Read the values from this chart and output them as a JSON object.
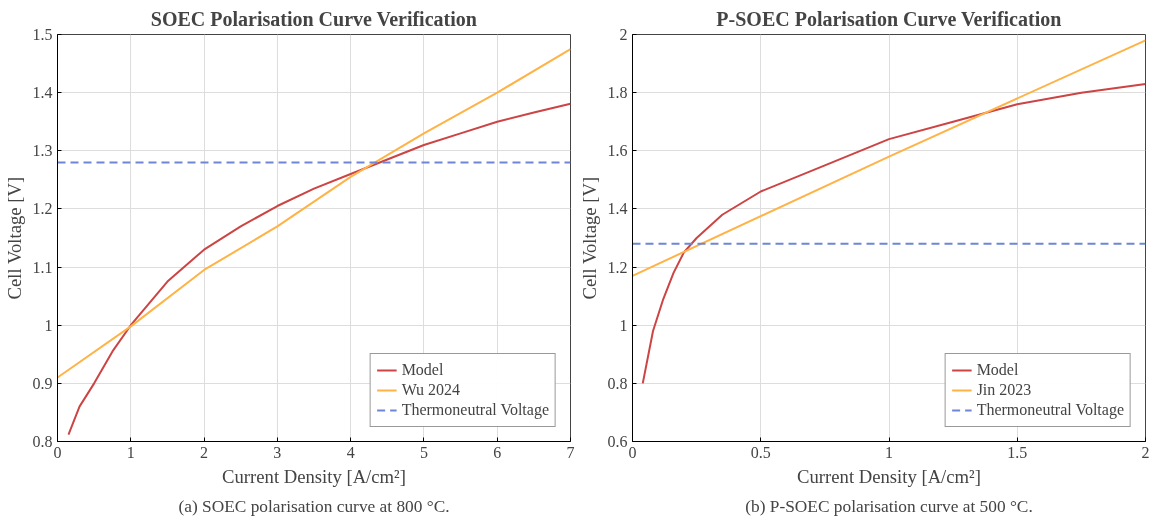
{
  "chart_data": [
    {
      "type": "line",
      "title": "SOEC Polarisation Curve Verification",
      "xlabel": "Current Density [A/cm²]",
      "ylabel": "Cell Voltage [V]",
      "xlim": [
        0,
        7
      ],
      "ylim": [
        0.8,
        1.5
      ],
      "xticks": [
        0,
        1,
        2,
        3,
        4,
        5,
        6,
        7
      ],
      "yticks": [
        0.8,
        0.9,
        1,
        1.1,
        1.2,
        1.3,
        1.4,
        1.5
      ],
      "grid": true,
      "legend": "bottom right",
      "annotations": [
        "(a) SOEC polarisation curve at 800 °C."
      ],
      "series": [
        {
          "name": "Model",
          "color": "#cc4444",
          "x": [
            0.15,
            0.3,
            0.5,
            0.75,
            1,
            1.5,
            2,
            2.5,
            3,
            3.5,
            4,
            4.5,
            5,
            5.5,
            6,
            6.5,
            7
          ],
          "values": [
            0.812,
            0.86,
            0.9,
            0.955,
            1.0,
            1.075,
            1.13,
            1.17,
            1.205,
            1.235,
            1.26,
            1.285,
            1.31,
            1.33,
            1.35,
            1.366,
            1.381
          ]
        },
        {
          "name": "Wu 2024",
          "color": "#ffb347",
          "x": [
            0,
            1,
            2,
            3,
            4,
            5,
            6,
            7
          ],
          "values": [
            0.91,
            0.998,
            1.095,
            1.17,
            1.255,
            1.33,
            1.4,
            1.475
          ]
        },
        {
          "name": "Thermoneutral Voltage",
          "color": "#6f86d6",
          "line_style": "dashed",
          "x": [
            0,
            7
          ],
          "values": [
            1.28,
            1.28
          ]
        }
      ]
    },
    {
      "type": "line",
      "title": "P-SOEC Polarisation Curve Verification",
      "xlabel": "Current Density [A/cm²]",
      "ylabel": "Cell Voltage [V]",
      "xlim": [
        0,
        2
      ],
      "ylim": [
        0.6,
        2
      ],
      "xticks": [
        0,
        0.5,
        1,
        1.5,
        2
      ],
      "yticks": [
        0.6,
        0.8,
        1,
        1.2,
        1.4,
        1.6,
        1.8,
        2
      ],
      "grid": true,
      "legend": "bottom right",
      "annotations": [
        "(b) P-SOEC polarisation curve at 500 °C."
      ],
      "series": [
        {
          "name": "Model",
          "color": "#cc4444",
          "x": [
            0.04,
            0.08,
            0.12,
            0.16,
            0.2,
            0.25,
            0.35,
            0.5,
            0.75,
            1,
            1.25,
            1.5,
            1.75,
            2
          ],
          "values": [
            0.8,
            0.98,
            1.09,
            1.18,
            1.25,
            1.3,
            1.38,
            1.46,
            1.55,
            1.64,
            1.7,
            1.76,
            1.8,
            1.83
          ]
        },
        {
          "name": "Jin 2023",
          "color": "#ffb347",
          "x": [
            0,
            1,
            2
          ],
          "values": [
            1.17,
            1.58,
            1.98
          ]
        },
        {
          "name": "Thermoneutral Voltage",
          "color": "#6f86d6",
          "line_style": "dashed",
          "x": [
            0,
            2
          ],
          "values": [
            1.28,
            1.28
          ]
        }
      ]
    }
  ]
}
